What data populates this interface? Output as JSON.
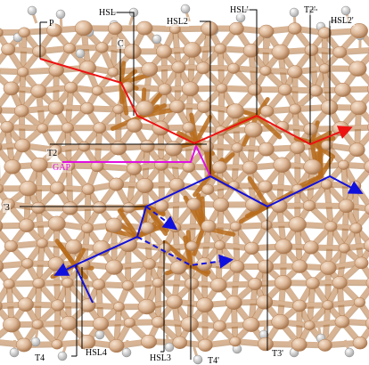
{
  "labels": {
    "p": "P",
    "c": "C",
    "hsl": "HSL",
    "hsl2": "HSL2",
    "hsl_prime": "HSL'",
    "t2_prime": "T2'",
    "hsl2_prime": "HSL2'",
    "t2": "T2",
    "gap": "GAP",
    "t3_left": "'3",
    "t4": "T4",
    "hsl4": "HSL4",
    "hsl3": "HSL3",
    "t4_prime": "T4'",
    "t3_prime": "T3'"
  },
  "colors": {
    "background": "#ffffff",
    "atom_light": "#e2bea0",
    "atom_dark": "#b07a50",
    "bond_light": "#d8b494",
    "bond_dark": "#a8703c",
    "bond_orange": "#b86c1c",
    "hydrogen": "#e6e6e6",
    "red_path": "#ee1111",
    "blue_path": "#1010dd",
    "magenta_path": "#e010e0",
    "callout": "#000000"
  }
}
